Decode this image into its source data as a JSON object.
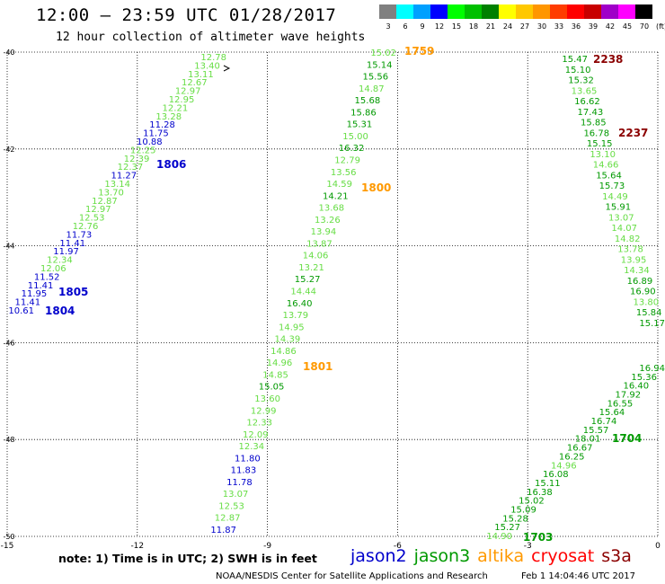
{
  "header": {
    "title": "12:00 – 23:59 UTC 01/28/2017",
    "subtitle": "12 hour collection of altimeter wave heights"
  },
  "colorbar": {
    "unit": "(ft)",
    "labels": [
      "3",
      "6",
      "9",
      "12",
      "15",
      "18",
      "21",
      "24",
      "27",
      "30",
      "33",
      "36",
      "39",
      "42",
      "45",
      "70"
    ],
    "colors": [
      "#808080",
      "#00ffff",
      "#00a0ff",
      "#0000ff",
      "#00ff00",
      "#00c000",
      "#008000",
      "#ffff00",
      "#ffc800",
      "#ff9600",
      "#ff3c00",
      "#ff0000",
      "#c80000",
      "#a000c8",
      "#ff00ff",
      "#000000"
    ]
  },
  "map": {
    "lon_ticks": [
      "-15",
      "-12",
      "-9",
      "-6",
      "-3",
      "0"
    ],
    "lat_ticks": [
      "-40",
      "-42",
      "-44",
      "-46",
      "-48",
      "-50"
    ],
    "lon_range": [
      -15,
      0
    ],
    "lat_range": [
      -50,
      -40
    ]
  },
  "tracks": {
    "colors": {
      "jason2": "#0000cc",
      "jason3": "#009900",
      "jason3_light": "#66dd44",
      "altika": "#ff9900",
      "cryosat": "#ff0000",
      "s3a": "#8b0000"
    },
    "track1": {
      "values": [
        {
          "t": "12.78",
          "c": "jason3_light"
        },
        {
          "t": "13.40",
          "c": "jason3_light"
        },
        {
          "t": "13.11",
          "c": "jason3_light"
        },
        {
          "t": "12.67",
          "c": "jason3_light"
        },
        {
          "t": "12.97",
          "c": "jason3_light"
        },
        {
          "t": "12.95",
          "c": "jason3_light"
        },
        {
          "t": "12.21",
          "c": "jason3_light"
        },
        {
          "t": "13.28",
          "c": "jason3_light"
        },
        {
          "t": "11.28",
          "c": "jason2"
        },
        {
          "t": "11.75",
          "c": "jason2"
        },
        {
          "t": "10.88",
          "c": "jason2"
        },
        {
          "t": "12.25",
          "c": "jason3_light"
        },
        {
          "t": "12.39",
          "c": "jason3_light"
        },
        {
          "t": "12.37",
          "c": "jason3_light"
        },
        {
          "t": "11.27",
          "c": "jason2"
        },
        {
          "t": "13.14",
          "c": "jason3_light"
        },
        {
          "t": "13.70",
          "c": "jason3_light"
        },
        {
          "t": "12.87",
          "c": "jason3_light"
        },
        {
          "t": "12.97",
          "c": "jason3_light"
        },
        {
          "t": "12.53",
          "c": "jason3_light"
        },
        {
          "t": "12.76",
          "c": "jason3_light"
        },
        {
          "t": "11.73",
          "c": "jason2"
        },
        {
          "t": "11.41",
          "c": "jason2"
        },
        {
          "t": "11.97",
          "c": "jason2"
        },
        {
          "t": "12.34",
          "c": "jason3_light"
        },
        {
          "t": "12.06",
          "c": "jason3_light"
        },
        {
          "t": "11.52",
          "c": "jason2"
        },
        {
          "t": "11.41",
          "c": "jason2"
        },
        {
          "t": "11.95",
          "c": "jason2"
        },
        {
          "t": "11.41",
          "c": "jason2"
        },
        {
          "t": "10.61",
          "c": "jason2"
        }
      ],
      "time_labels": [
        {
          "t": "1806",
          "c": "jason2"
        },
        {
          "t": "1805",
          "c": "jason2"
        },
        {
          "t": "1804",
          "c": "jason2"
        }
      ]
    },
    "track2": {
      "values": [
        {
          "t": "15.02",
          "c": "jason3_light"
        },
        {
          "t": "15.14",
          "c": "jason3"
        },
        {
          "t": "15.56",
          "c": "jason3"
        },
        {
          "t": "14.87",
          "c": "jason3_light"
        },
        {
          "t": "15.68",
          "c": "jason3"
        },
        {
          "t": "15.86",
          "c": "jason3"
        },
        {
          "t": "15.31",
          "c": "jason3"
        },
        {
          "t": "15.00",
          "c": "jason3_light"
        },
        {
          "t": "16.32",
          "c": "jason3"
        },
        {
          "t": "12.79",
          "c": "jason3_light"
        },
        {
          "t": "13.56",
          "c": "jason3_light"
        },
        {
          "t": "14.59",
          "c": "jason3_light"
        },
        {
          "t": "14.21",
          "c": "jason3"
        },
        {
          "t": "13.68",
          "c": "jason3_light"
        },
        {
          "t": "13.26",
          "c": "jason3_light"
        },
        {
          "t": "13.94",
          "c": "jason3_light"
        },
        {
          "t": "13.87",
          "c": "jason3_light"
        },
        {
          "t": "14.06",
          "c": "jason3_light"
        },
        {
          "t": "13.21",
          "c": "jason3_light"
        },
        {
          "t": "15.27",
          "c": "jason3"
        },
        {
          "t": "14.44",
          "c": "jason3_light"
        },
        {
          "t": "16.40",
          "c": "jason3"
        },
        {
          "t": "13.79",
          "c": "jason3_light"
        },
        {
          "t": "14.95",
          "c": "jason3_light"
        },
        {
          "t": "14.39",
          "c": "jason3_light"
        },
        {
          "t": "14.86",
          "c": "jason3_light"
        },
        {
          "t": "14.96",
          "c": "jason3_light"
        },
        {
          "t": "14.85",
          "c": "jason3_light"
        },
        {
          "t": "15.05",
          "c": "jason3"
        },
        {
          "t": "13.60",
          "c": "jason3_light"
        },
        {
          "t": "12.99",
          "c": "jason3_light"
        },
        {
          "t": "12.33",
          "c": "jason3_light"
        },
        {
          "t": "12.09",
          "c": "jason3_light"
        },
        {
          "t": "12.34",
          "c": "jason3_light"
        },
        {
          "t": "11.80",
          "c": "jason2"
        },
        {
          "t": "11.83",
          "c": "jason2"
        },
        {
          "t": "11.78",
          "c": "jason2"
        },
        {
          "t": "13.07",
          "c": "jason3_light"
        },
        {
          "t": "12.53",
          "c": "jason3_light"
        },
        {
          "t": "12.87",
          "c": "jason3_light"
        },
        {
          "t": "11.87",
          "c": "jason2"
        }
      ],
      "time_labels": [
        {
          "t": "1759",
          "c": "altika"
        },
        {
          "t": "1800",
          "c": "altika"
        },
        {
          "t": "1801",
          "c": "altika"
        }
      ]
    },
    "track3": {
      "values": [
        {
          "t": "15.47",
          "c": "jason3"
        },
        {
          "t": "15.10",
          "c": "jason3"
        },
        {
          "t": "15.32",
          "c": "jason3"
        },
        {
          "t": "13.65",
          "c": "jason3_light"
        },
        {
          "t": "16.62",
          "c": "jason3"
        },
        {
          "t": "17.43",
          "c": "jason3"
        },
        {
          "t": "15.85",
          "c": "jason3"
        },
        {
          "t": "16.78",
          "c": "jason3"
        },
        {
          "t": "15.15",
          "c": "jason3"
        },
        {
          "t": "13.10",
          "c": "jason3_light"
        },
        {
          "t": "14.66",
          "c": "jason3_light"
        },
        {
          "t": "15.64",
          "c": "jason3"
        },
        {
          "t": "15.73",
          "c": "jason3"
        },
        {
          "t": "14.49",
          "c": "jason3_light"
        },
        {
          "t": "15.91",
          "c": "jason3"
        },
        {
          "t": "13.07",
          "c": "jason3_light"
        },
        {
          "t": "14.07",
          "c": "jason3_light"
        },
        {
          "t": "14.82",
          "c": "jason3_light"
        },
        {
          "t": "13.78",
          "c": "jason3_light"
        },
        {
          "t": "13.95",
          "c": "jason3_light"
        },
        {
          "t": "14.34",
          "c": "jason3_light"
        },
        {
          "t": "16.89",
          "c": "jason3"
        },
        {
          "t": "16.90",
          "c": "jason3"
        },
        {
          "t": "13.80",
          "c": "jason3_light"
        },
        {
          "t": "15.84",
          "c": "jason3"
        },
        {
          "t": "15.17",
          "c": "jason3"
        }
      ],
      "time_labels": [
        {
          "t": "2238",
          "c": "s3a"
        },
        {
          "t": "2237",
          "c": "s3a"
        }
      ]
    },
    "track4": {
      "values": [
        {
          "t": "16.94",
          "c": "jason3"
        },
        {
          "t": "15.36",
          "c": "jason3"
        },
        {
          "t": "16.40",
          "c": "jason3"
        },
        {
          "t": "17.92",
          "c": "jason3"
        },
        {
          "t": "16.55",
          "c": "jason3"
        },
        {
          "t": "15.64",
          "c": "jason3"
        },
        {
          "t": "16.74",
          "c": "jason3"
        },
        {
          "t": "15.57",
          "c": "jason3"
        },
        {
          "t": "18.01",
          "c": "jason3"
        },
        {
          "t": "16.67",
          "c": "jason3"
        },
        {
          "t": "16.25",
          "c": "jason3"
        },
        {
          "t": "14.96",
          "c": "jason3_light"
        },
        {
          "t": "16.08",
          "c": "jason3"
        },
        {
          "t": "15.11",
          "c": "jason3"
        },
        {
          "t": "16.38",
          "c": "jason3"
        },
        {
          "t": "15.02",
          "c": "jason3"
        },
        {
          "t": "15.09",
          "c": "jason3"
        },
        {
          "t": "15.28",
          "c": "jason3"
        },
        {
          "t": "15.27",
          "c": "jason3"
        },
        {
          "t": "14.90",
          "c": "jason3_light"
        }
      ],
      "time_labels": [
        {
          "t": "1704",
          "c": "jason3"
        },
        {
          "t": "1703",
          "c": "jason3"
        }
      ]
    }
  },
  "footer": {
    "note": "note: 1) Time is in UTC; 2) SWH is in feet",
    "legend": [
      {
        "name": "jason2",
        "color": "#0000cc"
      },
      {
        "name": "jason3",
        "color": "#009900"
      },
      {
        "name": "altika",
        "color": "#ff9900"
      },
      {
        "name": "cryosat",
        "color": "#ff0000"
      },
      {
        "name": "s3a",
        "color": "#8b0000"
      }
    ],
    "credit": "NOAA/NESDIS Center for Satellite Applications and Research",
    "timestamp": "Feb  1 14:04:46 UTC 2017"
  }
}
